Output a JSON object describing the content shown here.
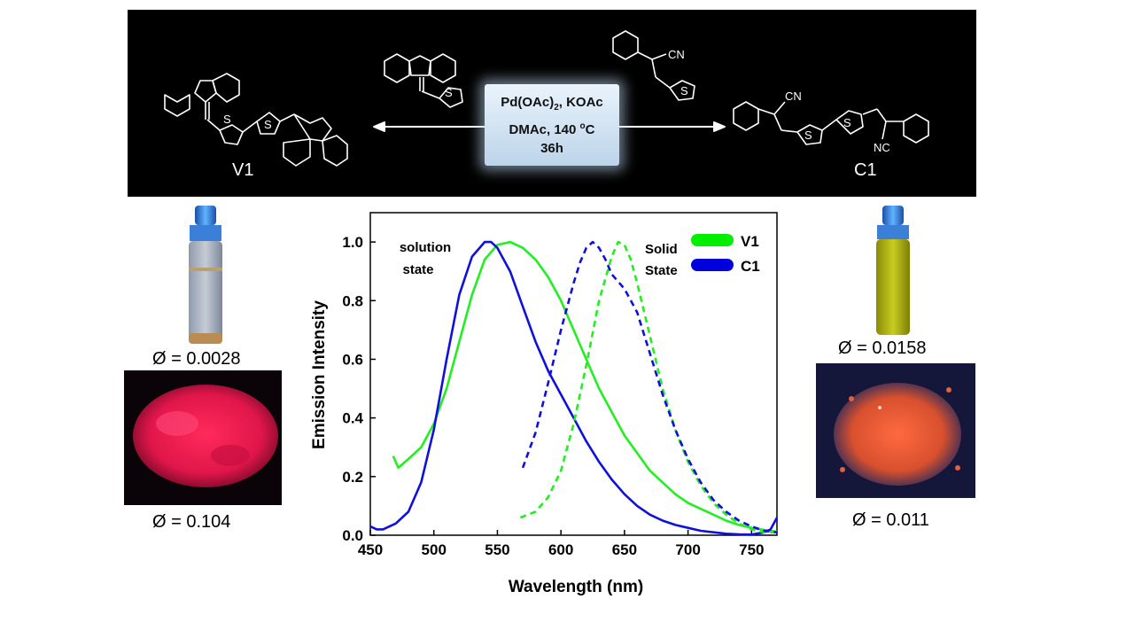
{
  "scheme": {
    "conditions": {
      "line1_pre": "Pd(OAc)",
      "line1_sub": "2",
      "line1_post": ", KOAc",
      "line2_pre": "DMAc, 140 ",
      "line2_sup": "o",
      "line2_post": "C",
      "line3": "36h"
    },
    "compound_left": "V1",
    "compound_right": "C1",
    "atom_S": "S",
    "atom_CN": "CN",
    "atom_NC": "NC",
    "arrow_color": "#ffffff"
  },
  "images": {
    "v1_solution_qy": "Ø = 0.0028",
    "v1_solid_qy": "Ø = 0.104",
    "c1_solution_qy": "Ø = 0.0158",
    "c1_solid_qy": "Ø = 0.011"
  },
  "chart_data": {
    "type": "line",
    "xlabel": "Wavelength (nm)",
    "ylabel": "Emission Intensity",
    "xlim": [
      450,
      770
    ],
    "ylim": [
      0,
      1.1
    ],
    "xticks": [
      450,
      500,
      550,
      600,
      650,
      700,
      750
    ],
    "yticks": [
      0.0,
      0.2,
      0.4,
      0.6,
      0.8,
      1.0
    ],
    "annotations": {
      "solution_line1": "solution",
      "solution_line2": "state",
      "solid_line1": "Solid",
      "solid_line2": "State"
    },
    "legend": [
      {
        "label": "V1",
        "color": "#00ee00"
      },
      {
        "label": "C1",
        "color": "#0000dd"
      }
    ],
    "series": [
      {
        "name": "V1",
        "state": "solution",
        "style": "solid",
        "color": "#22ee22",
        "x": [
          468,
          472,
          480,
          490,
          500,
          510,
          520,
          530,
          540,
          550,
          560,
          570,
          580,
          590,
          600,
          610,
          620,
          630,
          640,
          650,
          660,
          670,
          680,
          690,
          700,
          710,
          720,
          730,
          740,
          750,
          760,
          770
        ],
        "y": [
          0.27,
          0.23,
          0.26,
          0.3,
          0.38,
          0.5,
          0.66,
          0.82,
          0.94,
          0.99,
          1.0,
          0.98,
          0.94,
          0.88,
          0.8,
          0.7,
          0.6,
          0.5,
          0.42,
          0.34,
          0.28,
          0.22,
          0.18,
          0.14,
          0.11,
          0.09,
          0.07,
          0.05,
          0.035,
          0.025,
          0.018,
          0.012
        ]
      },
      {
        "name": "C1",
        "state": "solution",
        "style": "solid",
        "color": "#1010dd",
        "x": [
          450,
          455,
          460,
          470,
          480,
          490,
          500,
          510,
          520,
          530,
          540,
          545,
          550,
          560,
          570,
          580,
          590,
          600,
          610,
          620,
          630,
          640,
          650,
          660,
          670,
          680,
          690,
          700,
          710,
          720,
          730,
          740,
          750,
          760,
          765,
          770
        ],
        "y": [
          0.03,
          0.02,
          0.02,
          0.04,
          0.08,
          0.18,
          0.36,
          0.6,
          0.82,
          0.95,
          1.0,
          1.0,
          0.98,
          0.9,
          0.78,
          0.66,
          0.56,
          0.48,
          0.4,
          0.32,
          0.25,
          0.19,
          0.14,
          0.1,
          0.07,
          0.05,
          0.035,
          0.025,
          0.015,
          0.01,
          0.005,
          0.003,
          0.002,
          0.01,
          0.02,
          0.06
        ]
      },
      {
        "name": "V1",
        "state": "solid",
        "style": "dashed",
        "color": "#22ee22",
        "x": [
          568,
          580,
          590,
          600,
          610,
          620,
          630,
          640,
          645,
          650,
          655,
          660,
          670,
          680,
          690,
          700,
          710,
          720,
          730,
          740,
          750,
          760,
          770
        ],
        "y": [
          0.06,
          0.08,
          0.13,
          0.22,
          0.38,
          0.58,
          0.8,
          0.95,
          1.0,
          0.99,
          0.94,
          0.86,
          0.68,
          0.5,
          0.36,
          0.25,
          0.17,
          0.11,
          0.07,
          0.04,
          0.02,
          0.01,
          0.01
        ]
      },
      {
        "name": "C1",
        "state": "solid",
        "style": "dashed",
        "color": "#1010dd",
        "x": [
          570,
          580,
          590,
          600,
          610,
          615,
          620,
          625,
          630,
          635,
          640,
          650,
          660,
          670,
          680,
          690,
          700,
          710,
          720,
          730,
          740,
          750,
          760,
          770
        ],
        "y": [
          0.23,
          0.35,
          0.52,
          0.7,
          0.86,
          0.93,
          0.98,
          1.0,
          0.98,
          0.94,
          0.89,
          0.84,
          0.76,
          0.62,
          0.48,
          0.36,
          0.26,
          0.18,
          0.12,
          0.08,
          0.05,
          0.03,
          0.015,
          0.01
        ]
      }
    ]
  }
}
